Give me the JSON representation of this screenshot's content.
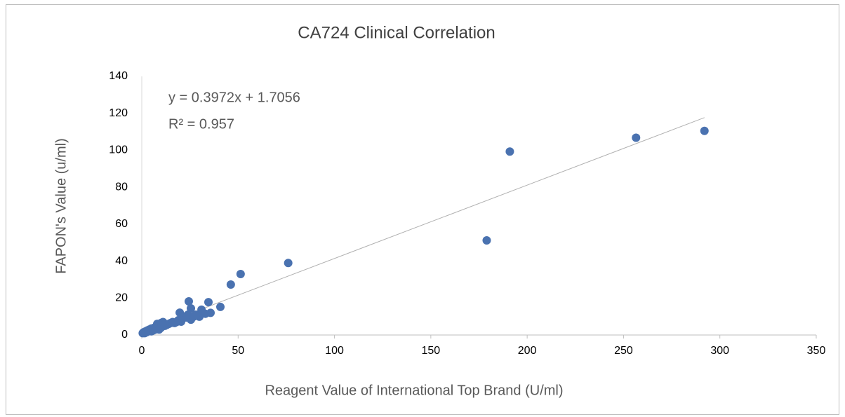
{
  "chart_data": {
    "type": "scatter",
    "title": "CA724 Clinical Correlation",
    "x_label": "Reagent Value of International Top Brand (U/ml)",
    "y_label": "FAPON's Value  (u/ml)",
    "xlim": [
      0,
      350
    ],
    "xticks": [
      0,
      50,
      100,
      150,
      200,
      250,
      300,
      350
    ],
    "ylim": [
      0,
      140
    ],
    "yticks": [
      0,
      20,
      40,
      60,
      80,
      100,
      120,
      140
    ],
    "grid": false,
    "color": "#4a72b0",
    "x": [
      292,
      256.5,
      191,
      179,
      76,
      51.3,
      46.2,
      40.8,
      34.6,
      35.7,
      31,
      29.9,
      24.4,
      25.5,
      25.5,
      19.7,
      20.4,
      0.5,
      1,
      1.5,
      2,
      2.5,
      3,
      3.5,
      4,
      5,
      5,
      6,
      6.5,
      7,
      8,
      8,
      9,
      9,
      10,
      10,
      11,
      12,
      12,
      13,
      14,
      15,
      16,
      17,
      18,
      19,
      21,
      22,
      23,
      24,
      27,
      28,
      33
    ],
    "values": [
      110.5,
      106.8,
      99.3,
      51.2,
      39,
      33,
      27.3,
      15.2,
      17.8,
      12,
      13.7,
      9.9,
      18.2,
      14.4,
      8.3,
      12.1,
      7.2,
      1,
      1.5,
      1,
      2,
      1.5,
      2.5,
      2,
      3,
      2,
      3.5,
      2.5,
      4,
      3,
      4.5,
      6,
      5,
      3,
      6.5,
      4,
      7,
      5,
      6,
      5.5,
      6,
      6.5,
      7,
      6.5,
      7,
      8,
      9,
      10,
      9.5,
      11,
      10,
      11,
      11.5
    ],
    "trendline": {
      "slope": 0.3972,
      "intercept": 1.7056,
      "color": "#b0b0b0",
      "equation": "y = 0.3972x + 1.7056",
      "r_squared": "R² = 0.957"
    }
  }
}
